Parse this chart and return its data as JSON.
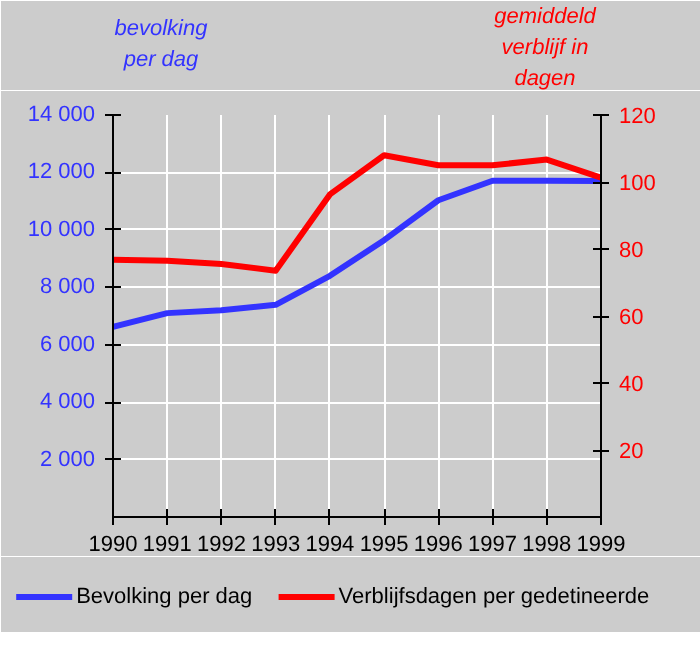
{
  "chart_data": {
    "type": "line",
    "ylabel": "bevolking per dag",
    "y2label": "gemiddeld verblijf in dagen",
    "x": [
      1990,
      1991,
      1992,
      1993,
      1994,
      1995,
      1996,
      1997,
      1998,
      1999
    ],
    "xlim": [
      1990,
      1999
    ],
    "xticks": [
      1990,
      1991,
      1992,
      1993,
      1994,
      1995,
      1996,
      1997,
      1998,
      1999
    ],
    "ylim": [
      0,
      14000
    ],
    "yticks": [
      {
        "value": 2000,
        "label": "2 000"
      },
      {
        "value": 4000,
        "label": "4 000"
      },
      {
        "value": 6000,
        "label": "6 000"
      },
      {
        "value": 8000,
        "label": "8 000"
      },
      {
        "value": 10000,
        "label": "10 000"
      },
      {
        "value": 12000,
        "label": "12 000"
      },
      {
        "value": 14000,
        "label": "14 000"
      }
    ],
    "y2lim": [
      0,
      120
    ],
    "y2ticks": [
      20,
      40,
      60,
      80,
      100,
      120
    ],
    "series": [
      {
        "name": "Bevolking per dag",
        "color": "#3333ff",
        "values": [
          6620,
          7100,
          7200,
          7390,
          8400,
          9640,
          11030,
          11710,
          11710,
          11700
        ]
      },
      {
        "name": "Verblijfsdagen per gedetineerde",
        "color": "#ff0000",
        "axis": "y2",
        "values": [
          76.8,
          76.5,
          75.5,
          73.5,
          96.3,
          108,
          105,
          105,
          106.7,
          101.3
        ]
      }
    ],
    "grid": true,
    "legend": "bottom",
    "marker": "none",
    "line_style": "solid"
  }
}
